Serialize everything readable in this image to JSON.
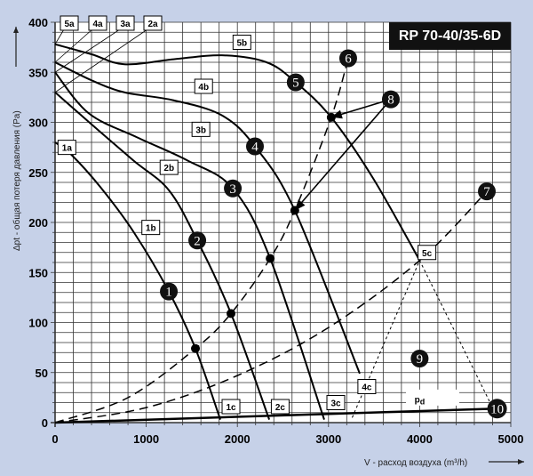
{
  "chart_data": {
    "type": "line",
    "title": "RP 70-40/35-6D",
    "xlabel": "V - расход воздуха (m³/h)",
    "ylabel": "Δpt - общая потеря давления (Pa)",
    "xlim": [
      0,
      5000
    ],
    "ylim": [
      0,
      400
    ],
    "xticks": [
      "0",
      "1000",
      "2000",
      "3000",
      "4000",
      "5000"
    ],
    "yticks": [
      "0",
      "50",
      "100",
      "150",
      "200",
      "250",
      "300",
      "350",
      "400"
    ],
    "grid": true,
    "series": [
      {
        "name": "1",
        "start_label": "1a",
        "mid_label": "1b",
        "end_label": "1c",
        "x": [
          0,
          175,
          500,
          858,
          1248,
          1540,
          1813
        ],
        "y": [
          280,
          268,
          235,
          191,
          131,
          74,
          3
        ]
      },
      {
        "name": "2",
        "start_label": "2a",
        "mid_label": "2b",
        "end_label": "2c",
        "x": [
          0,
          400,
          858,
          1250,
          1560,
          1930,
          2350
        ],
        "y": [
          330,
          298,
          262,
          232,
          182,
          109,
          3
        ]
      },
      {
        "name": "3",
        "start_label": "3a",
        "mid_label": "3b",
        "end_label": "3c",
        "x": [
          0,
          370,
          900,
          1450,
          1950,
          2360,
          2953
        ],
        "y": [
          350,
          309,
          285,
          262,
          234,
          164,
          3
        ]
      },
      {
        "name": "4",
        "start_label": "4a",
        "mid_label": "4b",
        "end_label": "4c",
        "x": [
          0,
          400,
          760,
          1300,
          1830,
          2193,
          2630,
          3343
        ],
        "y": [
          360,
          342,
          330,
          322,
          307,
          276,
          212,
          49
        ]
      },
      {
        "name": "5",
        "start_label": "5a",
        "mid_label": "5b",
        "end_label": "5c",
        "x": [
          0,
          400,
          760,
          1300,
          1830,
          2320,
          2640,
          3030,
          3490,
          4000
        ],
        "y": [
          378,
          368,
          358,
          363,
          367,
          360,
          340,
          305,
          244,
          162
        ]
      }
    ],
    "system_curves": [
      {
        "name": "6",
        "style": "dashed",
        "x": [
          0,
          800,
          1540,
          1930,
          2360,
          2630,
          3030,
          3216
        ],
        "y": [
          0,
          25,
          74,
          109,
          164,
          212,
          305,
          364
        ]
      },
      {
        "name": "7",
        "style": "dashed",
        "x": [
          0,
          1000,
          2000,
          3000,
          4000,
          4737
        ],
        "y": [
          0,
          15,
          47,
          95,
          162,
          231
        ]
      }
    ],
    "operating_points": [
      {
        "x": 1540,
        "y": 74
      },
      {
        "x": 1930,
        "y": 109
      },
      {
        "x": 2360,
        "y": 164
      },
      {
        "x": 2630,
        "y": 212
      },
      {
        "x": 3030,
        "y": 305
      }
    ],
    "area_9": {
      "name": "9",
      "style": "dotted",
      "x": [
        3260,
        4000,
        4800
      ],
      "y": [
        5,
        162,
        15
      ]
    },
    "dynamic_pressure": {
      "label": "pd",
      "name": "10",
      "x": [
        0,
        4850
      ],
      "y": [
        0,
        14
      ]
    },
    "markers": [
      {
        "name": "1",
        "x": 1248,
        "y": 131
      },
      {
        "name": "2",
        "x": 1560,
        "y": 182
      },
      {
        "name": "3",
        "x": 1950,
        "y": 234
      },
      {
        "name": "4",
        "x": 2193,
        "y": 276
      },
      {
        "name": "5",
        "x": 2640,
        "y": 340
      },
      {
        "name": "6",
        "x": 3216,
        "y": 364
      },
      {
        "name": "7",
        "x": 4737,
        "y": 231
      },
      {
        "name": "8",
        "x": 3684,
        "y": 323
      },
      {
        "name": "9",
        "x": 4000,
        "y": 64
      },
      {
        "name": "10",
        "x": 4850,
        "y": 14
      }
    ],
    "arrows_from_8_to": [
      {
        "x": 3030,
        "y": 305
      },
      {
        "x": 2630,
        "y": 212
      }
    ],
    "colors": {
      "background": "#c6d1e8",
      "plot": "#ffffff",
      "ink": "#000000"
    }
  }
}
